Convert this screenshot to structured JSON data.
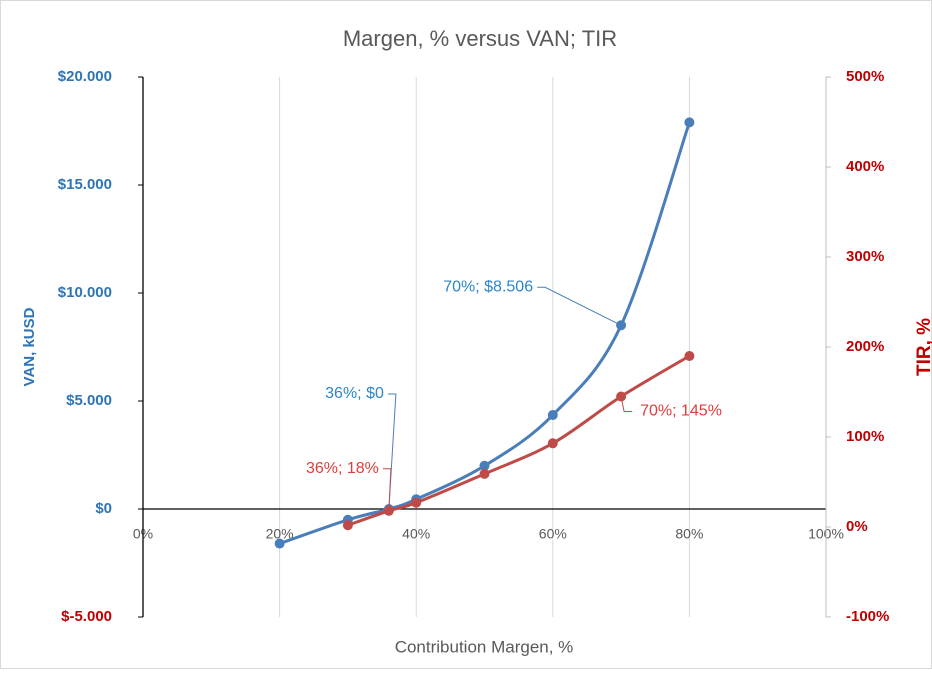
{
  "chart_data": {
    "type": "line",
    "title": "Margen, % versus VAN; TIR",
    "x_label": "Contribution Margen, %",
    "y_label": "VAN, kUSD",
    "y2_label": "TIR, %",
    "xlim": [
      0,
      100
    ],
    "xticks": [
      {
        "value": 0,
        "label": "0%"
      },
      {
        "value": 20,
        "label": "20%"
      },
      {
        "value": 40,
        "label": "40%"
      },
      {
        "value": 60,
        "label": "60%"
      },
      {
        "value": 80,
        "label": "80%"
      },
      {
        "value": 100,
        "label": "100%"
      }
    ],
    "ylim": [
      -5000,
      20000
    ],
    "yticks": [
      {
        "value": -5000,
        "label": "$-5.000"
      },
      {
        "value": 0,
        "label": "$0"
      },
      {
        "value": 5000,
        "label": "$5.000"
      },
      {
        "value": 10000,
        "label": "$10.000"
      },
      {
        "value": 15000,
        "label": "$15.000"
      },
      {
        "value": 20000,
        "label": "$20.000"
      }
    ],
    "y2lim": [
      -100,
      500
    ],
    "y2ticks": [
      {
        "value": -100,
        "label": "-100%"
      },
      {
        "value": 0,
        "label": "0%"
      },
      {
        "value": 100,
        "label": "100%"
      },
      {
        "value": 200,
        "label": "200%"
      },
      {
        "value": 300,
        "label": "300%"
      },
      {
        "value": 400,
        "label": "400%"
      },
      {
        "value": 500,
        "label": "500%"
      }
    ],
    "grid": true,
    "series": [
      {
        "name": "VAN",
        "color": "#4a7ebb",
        "axis": "y",
        "x": [
          20,
          30,
          36,
          40,
          50,
          60,
          70,
          80
        ],
        "values": [
          -1600,
          -500,
          0,
          450,
          2000,
          4350,
          8506,
          17900
        ],
        "value_labels": [
          null,
          null,
          "36%; $0",
          null,
          null,
          null,
          "70%; $8.506",
          null
        ]
      },
      {
        "name": "TIR",
        "color": "#be4b48",
        "axis": "y2",
        "x": [
          30,
          36,
          40,
          50,
          60,
          70,
          80
        ],
        "values": [
          2,
          18,
          27,
          59,
          93,
          145,
          190
        ],
        "value_labels": [
          null,
          "36%; 18%",
          null,
          null,
          null,
          "70%; 145%",
          null
        ]
      }
    ]
  }
}
